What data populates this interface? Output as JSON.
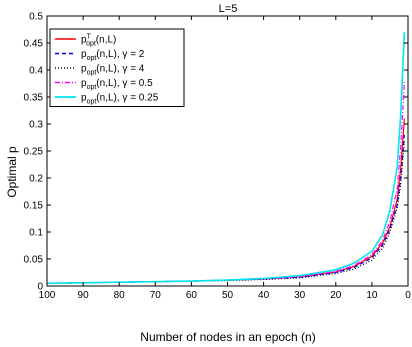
{
  "chart_data": {
    "type": "line",
    "title": "L=5",
    "xlabel": "Number of nodes in an epoch (n)",
    "ylabel": "Optimal p",
    "xlim": [
      100,
      0
    ],
    "x_reversed": true,
    "ylim": [
      0,
      0.5
    ],
    "xticks": [
      100,
      90,
      80,
      70,
      60,
      50,
      40,
      30,
      20,
      10,
      0
    ],
    "xtick_labels": [
      "100",
      "90",
      "80",
      "70",
      "60",
      "50",
      "40",
      "30",
      "20",
      "10",
      "0"
    ],
    "yticks": [
      0,
      0.05,
      0.1,
      0.15,
      0.2,
      0.25,
      0.3,
      0.35,
      0.4,
      0.45,
      0.5
    ],
    "ytick_labels": [
      "0",
      "0.05",
      "0.1",
      "0.15",
      "0.2",
      "0.25",
      "0.3",
      "0.35",
      "0.4",
      "0.45",
      "0.5"
    ],
    "grid": false,
    "legend_position": "top-left",
    "x": [
      100,
      90,
      80,
      70,
      60,
      50,
      40,
      30,
      20,
      15,
      10,
      7,
      5,
      3,
      2,
      1
    ],
    "series": [
      {
        "label_main": "p",
        "label_sup": "T",
        "label_sub": "opt",
        "label_rest": "(n,L)",
        "color": "#ff0000",
        "dash": "solid",
        "values": [
          0.005,
          0.006,
          0.007,
          0.008,
          0.009,
          0.011,
          0.013,
          0.017,
          0.026,
          0.036,
          0.055,
          0.08,
          0.11,
          0.16,
          0.22,
          0.31
        ]
      },
      {
        "label_main": "p",
        "label_sup": "",
        "label_sub": "opt",
        "label_rest": "(n,L), γ = 2",
        "color": "#0000ff",
        "dash": "dashed",
        "values": [
          0.005,
          0.006,
          0.007,
          0.008,
          0.009,
          0.011,
          0.013,
          0.016,
          0.025,
          0.034,
          0.052,
          0.076,
          0.105,
          0.15,
          0.2,
          0.28
        ]
      },
      {
        "label_main": "p",
        "label_sup": "",
        "label_sub": "opt",
        "label_rest": "(n,L), γ = 4",
        "color": "#000000",
        "dash": "dotted",
        "values": [
          0.005,
          0.006,
          0.007,
          0.008,
          0.009,
          0.01,
          0.012,
          0.015,
          0.023,
          0.031,
          0.048,
          0.07,
          0.1,
          0.145,
          0.19,
          0.27
        ]
      },
      {
        "label_main": "p",
        "label_sup": "",
        "label_sub": "opt",
        "label_rest": "(n,L), γ = 0.5",
        "color": "#ff00ff",
        "dash": "dashdot",
        "values": [
          0.005,
          0.006,
          0.007,
          0.008,
          0.009,
          0.011,
          0.013,
          0.017,
          0.027,
          0.038,
          0.058,
          0.085,
          0.12,
          0.18,
          0.26,
          0.38
        ]
      },
      {
        "label_main": "p",
        "label_sup": "",
        "label_sub": "opt",
        "label_rest": "(n,L), γ = 0.25",
        "color": "#00e5ee",
        "dash": "solid",
        "values": [
          0.005,
          0.006,
          0.007,
          0.008,
          0.009,
          0.011,
          0.014,
          0.019,
          0.03,
          0.042,
          0.064,
          0.095,
          0.14,
          0.22,
          0.32,
          0.47
        ]
      }
    ]
  }
}
